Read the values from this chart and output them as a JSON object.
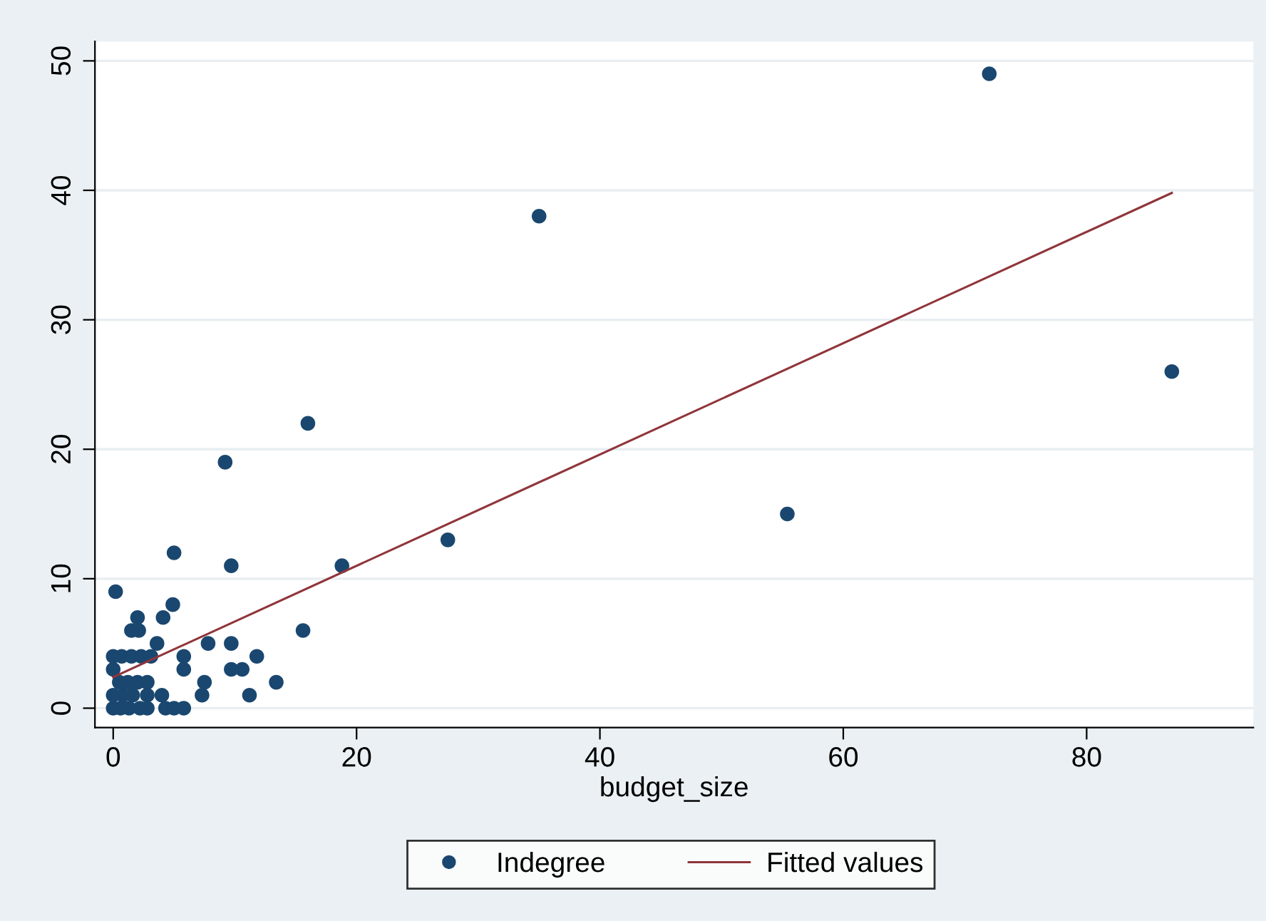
{
  "chart_data": {
    "type": "scatter",
    "xlabel": "budget_size",
    "xlim": [
      -1.5,
      93.7
    ],
    "ylim": [
      -1.5,
      51.5
    ],
    "xticks": [
      0,
      20,
      40,
      60,
      80
    ],
    "yticks": [
      0,
      10,
      20,
      30,
      40,
      50
    ],
    "grid": "y",
    "legend": "bottom",
    "marker": "circle",
    "series": [
      {
        "name": "Indegree",
        "color": "#1a476f",
        "x": [
          72,
          35,
          87,
          16,
          55.4,
          27.5,
          9.2,
          18.8,
          9.7,
          5,
          0.2,
          4.9,
          4.1,
          2,
          1.5,
          2.1,
          15.6,
          3.6,
          7.8,
          9.7,
          0,
          0.7,
          1.5,
          2.3,
          3.1,
          5.8,
          11.8,
          0,
          5.8,
          9.7,
          10.6,
          0.5,
          1.2,
          2,
          2.8,
          7.5,
          13.4,
          0,
          0.8,
          1.6,
          2.8,
          4,
          7.3,
          11.2,
          0,
          0.6,
          1.3,
          2.2,
          2.8,
          4.3,
          5,
          5.8
        ],
        "values": [
          49,
          38,
          26,
          22,
          15,
          13,
          19,
          11,
          11,
          12,
          9,
          8,
          7,
          7,
          6,
          6,
          6,
          5,
          5,
          5,
          4,
          4,
          4,
          4,
          4,
          4,
          4,
          3,
          3,
          3,
          3,
          2,
          2,
          2,
          2,
          2,
          2,
          1,
          1,
          1,
          1,
          1,
          1,
          1,
          0,
          0,
          0,
          0,
          0,
          0,
          0,
          0
        ]
      },
      {
        "name": "Fitted values",
        "type": "line",
        "color": "#90353b",
        "marker": "none",
        "x": [
          0,
          87
        ],
        "values": [
          2.4,
          39.8
        ]
      }
    ]
  }
}
